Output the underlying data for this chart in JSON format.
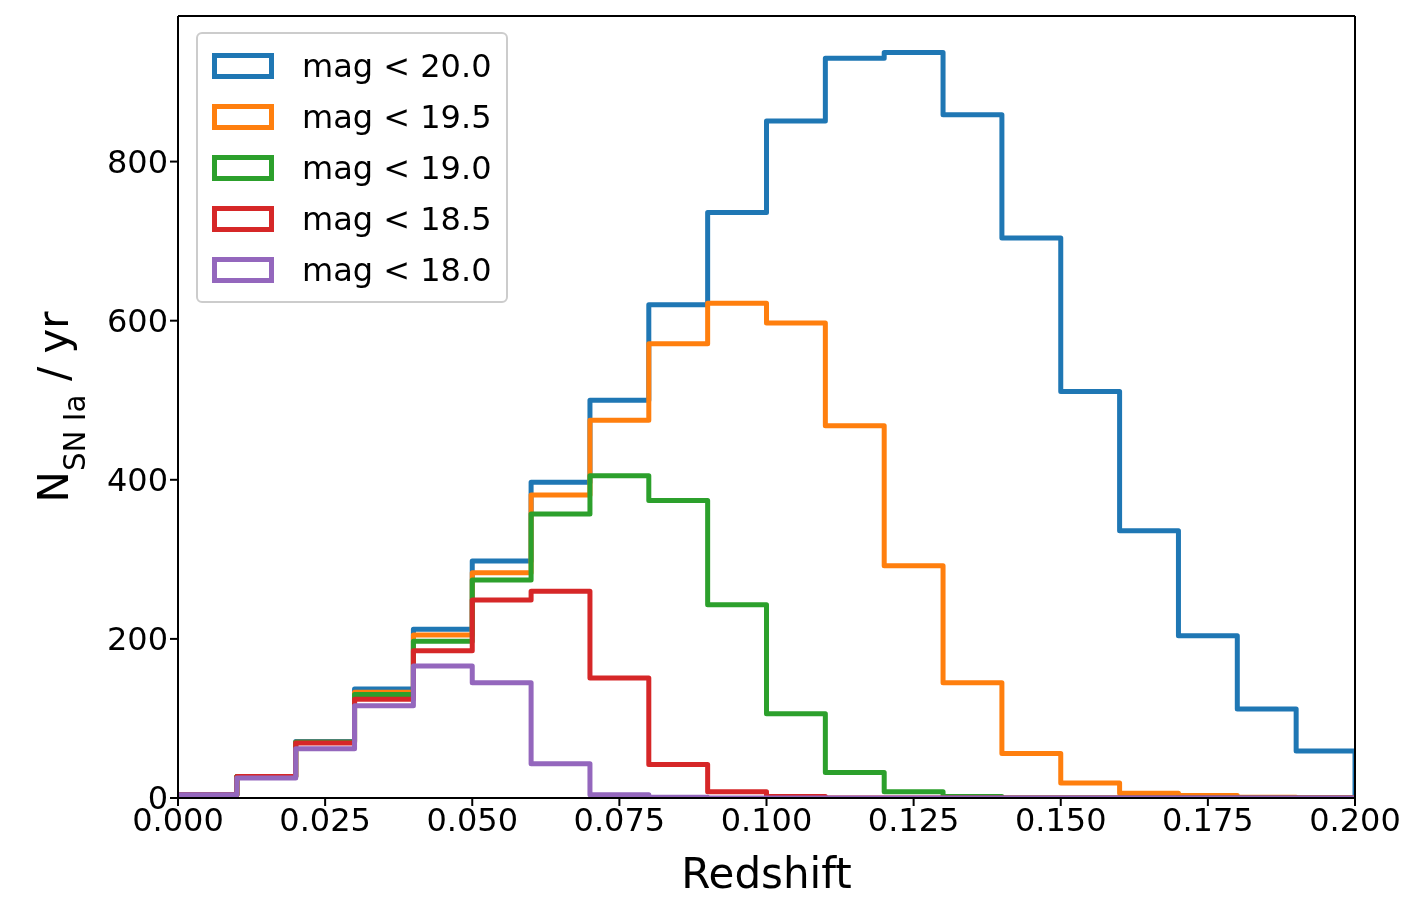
{
  "chart_data": {
    "type": "histogram",
    "xlabel": "Redshift",
    "ylabel": "N$_{SN Ia}$ / yr",
    "bins": [
      0,
      0.01,
      0.02,
      0.03,
      0.04,
      0.05,
      0.06,
      0.07,
      0.08,
      0.09,
      0.1,
      0.11,
      0.12,
      0.13,
      0.14,
      0.15,
      0.16,
      0.17,
      0.18,
      0.19,
      0.2
    ],
    "series": [
      {
        "name": "mag < 20.0",
        "color": "#1f77b4",
        "values": [
          4,
          27,
          71,
          137,
          212,
          298,
          397,
          500,
          620,
          736,
          851,
          930,
          937,
          859,
          704,
          511,
          336,
          204,
          112,
          59
        ]
      },
      {
        "name": "mag < 19.5",
        "color": "#ff7f0e",
        "values": [
          4,
          27,
          70,
          133,
          205,
          283,
          381,
          475,
          571,
          622,
          597,
          468,
          292,
          145,
          56,
          19,
          6,
          3,
          1,
          0
        ]
      },
      {
        "name": "mag < 19.0",
        "color": "#2ca02c",
        "values": [
          4,
          27,
          70,
          130,
          197,
          274,
          357,
          405,
          374,
          243,
          106,
          32,
          8,
          2,
          0,
          0,
          0,
          0,
          0,
          0
        ]
      },
      {
        "name": "mag < 18.5",
        "color": "#d62728",
        "values": [
          4,
          27,
          69,
          124,
          185,
          249,
          260,
          151,
          42,
          8,
          2,
          0,
          0,
          0,
          0,
          0,
          0,
          0,
          0,
          0
        ]
      },
      {
        "name": "mag < 18.0",
        "color": "#9467bd",
        "values": [
          4,
          25,
          62,
          116,
          166,
          145,
          43,
          4,
          1,
          0,
          0,
          0,
          0,
          0,
          0,
          0,
          0,
          0,
          0,
          0
        ]
      }
    ],
    "xlim": [
      0,
      0.2
    ],
    "ylim": [
      0,
      983
    ],
    "xticks": [
      {
        "value": 0,
        "label": "0.000"
      },
      {
        "value": 0.025,
        "label": "0.025"
      },
      {
        "value": 0.05,
        "label": "0.050"
      },
      {
        "value": 0.075,
        "label": "0.075"
      },
      {
        "value": 0.1,
        "label": "0.100"
      },
      {
        "value": 0.125,
        "label": "0.125"
      },
      {
        "value": 0.15,
        "label": "0.150"
      },
      {
        "value": 0.175,
        "label": "0.175"
      },
      {
        "value": 0.2,
        "label": "0.200"
      }
    ],
    "yticks": [
      0,
      200,
      400,
      600,
      800
    ],
    "legend": "top left",
    "line_style": "solid"
  }
}
